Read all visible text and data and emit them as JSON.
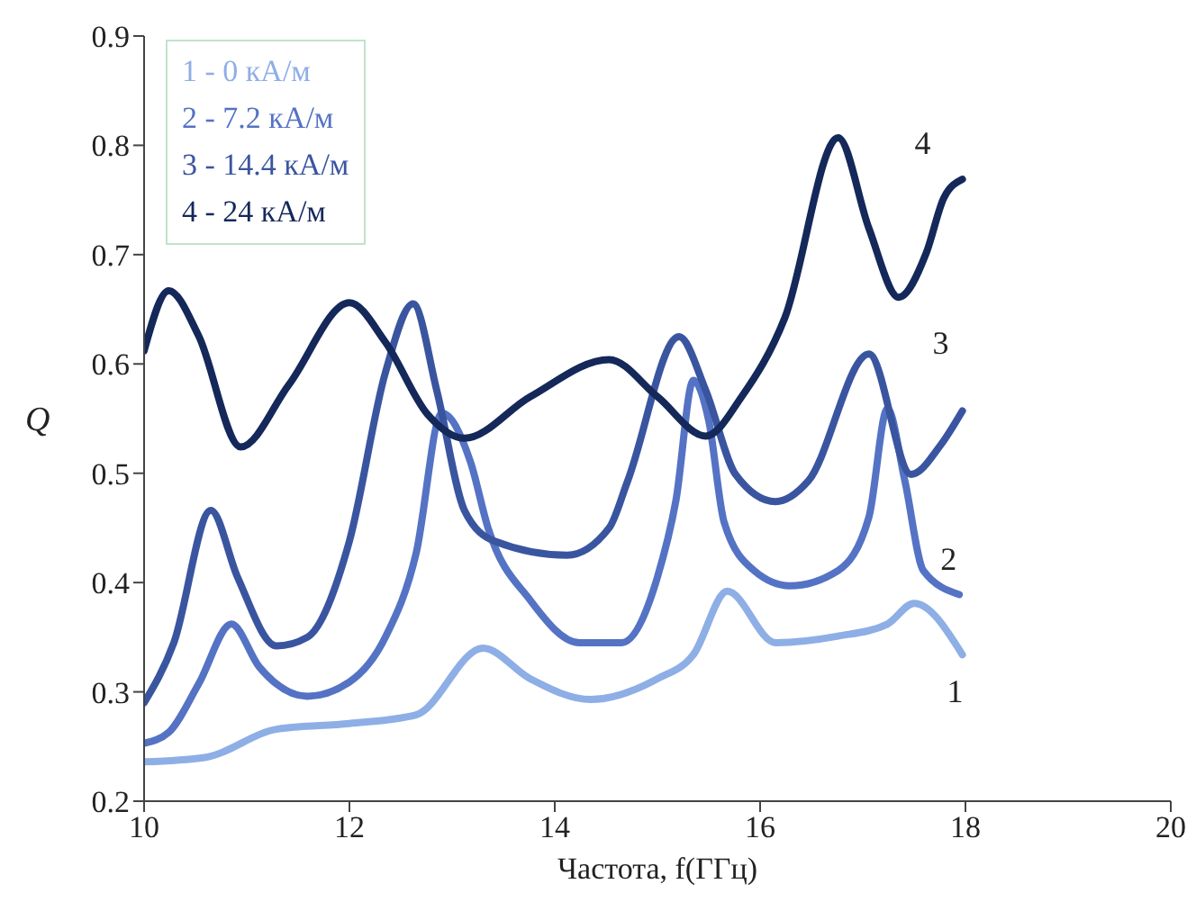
{
  "chart_data": {
    "type": "line",
    "xlabel": "Частота, f(ГГц)",
    "ylabel": "Q",
    "xlim": [
      10,
      20
    ],
    "xticks": [
      10,
      12,
      14,
      16,
      18,
      20
    ],
    "ylim": [
      0.2,
      0.9
    ],
    "yticks": [
      0.2,
      0.3,
      0.4,
      0.5,
      0.6,
      0.7,
      0.8,
      0.9
    ],
    "grid": false,
    "legend": "top left",
    "marker": "none",
    "line_style": "solid",
    "series": [
      {
        "name": "1 - 0 кА/м",
        "color": "#8eaee6",
        "x": [
          10,
          10.59,
          11.3,
          12,
          12.65,
          13.3,
          13.76,
          14.35,
          15.0,
          15.35,
          15.68,
          16.15,
          16.76,
          17.24,
          17.5,
          17.97
        ],
        "values": [
          0.236,
          0.24,
          0.266,
          0.271,
          0.279,
          0.34,
          0.312,
          0.293,
          0.312,
          0.334,
          0.392,
          0.345,
          0.351,
          0.362,
          0.381,
          0.334
        ]
      },
      {
        "name": "2 - 7.2 кА/м",
        "color": "#5573c4",
        "x": [
          10,
          10.24,
          10.53,
          10.85,
          11.12,
          11.59,
          12,
          12.35,
          12.65,
          12.9,
          13.18,
          13.35,
          13.76,
          14.24,
          14.65,
          15.0,
          15.18,
          15.35,
          15.5,
          15.65,
          15.94,
          16.29,
          16.76,
          17.06,
          17.24,
          17.41,
          17.59,
          17.94
        ],
        "values": [
          0.253,
          0.263,
          0.307,
          0.362,
          0.323,
          0.296,
          0.309,
          0.35,
          0.427,
          0.555,
          0.51,
          0.45,
          0.384,
          0.345,
          0.345,
          0.405,
          0.475,
          0.585,
          0.548,
          0.455,
          0.411,
          0.397,
          0.411,
          0.46,
          0.559,
          0.493,
          0.411,
          0.389
        ]
      },
      {
        "name": "3 - 14.4 кА/м",
        "color": "#3a55a0",
        "x": [
          10,
          10.29,
          10.65,
          10.91,
          11.29,
          11.59,
          12,
          12.35,
          12.62,
          12.85,
          13.12,
          13.41,
          14.12,
          14.53,
          14.71,
          15.21,
          15.47,
          15.76,
          16.15,
          16.47,
          17.06,
          17.47,
          17.76,
          17.97
        ],
        "values": [
          0.29,
          0.345,
          0.466,
          0.405,
          0.342,
          0.35,
          0.438,
          0.592,
          0.655,
          0.576,
          0.466,
          0.438,
          0.425,
          0.45,
          0.493,
          0.625,
          0.576,
          0.499,
          0.474,
          0.493,
          0.609,
          0.499,
          0.526,
          0.557
        ]
      },
      {
        "name": "4 - 24 кА/м",
        "color": "#14285a",
        "x": [
          10,
          10.24,
          10.53,
          10.94,
          11.41,
          12,
          12.35,
          12.76,
          13.12,
          13.76,
          14.53,
          15.0,
          15.47,
          15.82,
          16.24,
          16.76,
          17.06,
          17.35,
          17.62,
          17.79,
          17.97
        ],
        "values": [
          0.612,
          0.667,
          0.626,
          0.524,
          0.581,
          0.656,
          0.62,
          0.554,
          0.532,
          0.57,
          0.604,
          0.57,
          0.534,
          0.57,
          0.642,
          0.807,
          0.724,
          0.661,
          0.702,
          0.752,
          0.769
        ]
      }
    ],
    "annotations": [
      "1",
      "2",
      "3",
      "4"
    ]
  }
}
